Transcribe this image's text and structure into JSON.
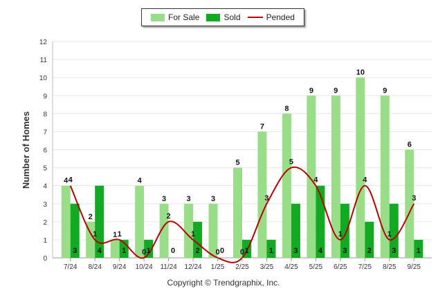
{
  "chart_data": {
    "type": "bar",
    "categories": [
      "7/24",
      "8/24",
      "9/24",
      "10/24",
      "11/24",
      "12/24",
      "1/25",
      "2/25",
      "3/25",
      "4/25",
      "5/25",
      "6/25",
      "7/25",
      "8/25",
      "9/25"
    ],
    "series": [
      {
        "name": "For Sale",
        "type": "bar",
        "color": "#99dd88",
        "values": [
          4,
          2,
          1,
          4,
          3,
          3,
          3,
          5,
          7,
          8,
          9,
          9,
          10,
          9,
          6
        ]
      },
      {
        "name": "Sold",
        "type": "bar",
        "color": "#11aa22",
        "values": [
          3,
          4,
          1,
          1,
          0,
          2,
          0,
          1,
          1,
          3,
          4,
          3,
          2,
          3,
          1
        ]
      },
      {
        "name": "Pended",
        "type": "line",
        "color": "#bb0000",
        "values": [
          4,
          1,
          1,
          0,
          2,
          1,
          0,
          0,
          3,
          5,
          4,
          1,
          4,
          1,
          3
        ]
      }
    ],
    "title": "",
    "xlabel": "",
    "ylabel": "Number of Homes",
    "ylim": [
      0,
      12
    ],
    "yticks": [
      0,
      1,
      2,
      3,
      4,
      5,
      6,
      7,
      8,
      9,
      10,
      11,
      12
    ],
    "grid": true,
    "legend": "top-center"
  },
  "footer": "Copyright © Trendgraphix, Inc."
}
